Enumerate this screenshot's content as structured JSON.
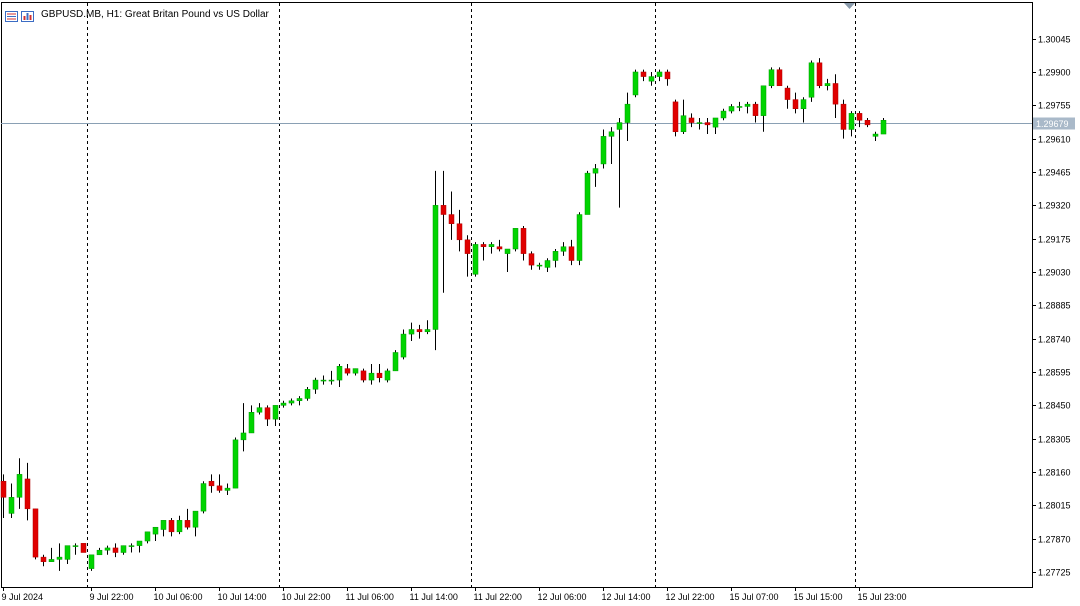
{
  "header": {
    "symbol_label": "GBPUSD.MB, H1:",
    "description": "Great Britan Pound vs US Dollar",
    "icons": [
      "chart-menu-icon",
      "bar-chart-icon"
    ]
  },
  "colors": {
    "bull": "#00d400",
    "bear": "#e00000",
    "wick": "#000000",
    "current_price_line": "#8aa0b4",
    "current_price_label_bg": "#a9b9c9",
    "separator": "#000000",
    "frame": "#000000"
  },
  "chart_data": {
    "type": "candlestick",
    "timeframe": "H1",
    "ylim": [
      1.2766,
      1.302
    ],
    "y_ticks": [
      "1.30045",
      "1.29900",
      "1.29755",
      "1.29610",
      "1.29465",
      "1.29320",
      "1.29175",
      "1.29030",
      "1.28885",
      "1.28740",
      "1.28595",
      "1.28450",
      "1.28305",
      "1.28160",
      "1.28015",
      "1.27870",
      "1.27725"
    ],
    "x_tick_labels": [
      "9 Jul 2024",
      "9 Jul 22:00",
      "10 Jul 06:00",
      "10 Jul 14:00",
      "10 Jul 22:00",
      "11 Jul 06:00",
      "11 Jul 14:00",
      "11 Jul 22:00",
      "12 Jul 06:00",
      "12 Jul 14:00",
      "12 Jul 22:00",
      "15 Jul 07:00",
      "15 Jul 15:00",
      "15 Jul 23:00"
    ],
    "x_tick_index": [
      0,
      11,
      19,
      27,
      35,
      43,
      51,
      59,
      67,
      75,
      83,
      91,
      99,
      107
    ],
    "day_separators_index": [
      10.5,
      34.5,
      58.5,
      81.5,
      106.5
    ],
    "current_price": "1.29679",
    "ohlc": [
      [
        1.2812,
        1.2815,
        1.2796,
        1.2805
      ],
      [
        1.2798,
        1.2811,
        1.2796,
        1.2805
      ],
      [
        1.2805,
        1.2822,
        1.28,
        1.2815
      ],
      [
        1.2813,
        1.282,
        1.2795,
        1.28
      ],
      [
        1.28,
        1.28,
        1.2778,
        1.2779
      ],
      [
        1.2779,
        1.278,
        1.2775,
        1.2777
      ],
      [
        1.2777,
        1.2783,
        1.2777,
        1.2778
      ],
      [
        1.2778,
        1.2785,
        1.2773,
        1.2779
      ],
      [
        1.2778,
        1.2783,
        1.2776,
        1.2784
      ],
      [
        1.2784,
        1.2785,
        1.278,
        1.2784
      ],
      [
        1.2785,
        1.2785,
        1.2781,
        1.2781
      ],
      [
        1.2774,
        1.2779,
        1.2773,
        1.278
      ],
      [
        1.278,
        1.2783,
        1.278,
        1.2782
      ],
      [
        1.2782,
        1.2784,
        1.278,
        1.2783
      ],
      [
        1.2783,
        1.2785,
        1.2779,
        1.2781
      ],
      [
        1.2781,
        1.2784,
        1.278,
        1.2784
      ],
      [
        1.2784,
        1.2785,
        1.2781,
        1.2784
      ],
      [
        1.2784,
        1.2786,
        1.2781,
        1.2786
      ],
      [
        1.2786,
        1.279,
        1.2785,
        1.279
      ],
      [
        1.2789,
        1.2792,
        1.2786,
        1.2792
      ],
      [
        1.2791,
        1.2795,
        1.2788,
        1.2795
      ],
      [
        1.2795,
        1.2796,
        1.2788,
        1.279
      ],
      [
        1.279,
        1.2797,
        1.2789,
        1.2795
      ],
      [
        1.2795,
        1.28,
        1.2791,
        1.2792
      ],
      [
        1.2792,
        1.2799,
        1.2788,
        1.2799
      ],
      [
        1.2799,
        1.2812,
        1.2798,
        1.2811
      ],
      [
        1.2812,
        1.2815,
        1.2807,
        1.281
      ],
      [
        1.281,
        1.2815,
        1.2807,
        1.2808
      ],
      [
        1.2808,
        1.2811,
        1.2806,
        1.2809
      ],
      [
        1.2809,
        1.2831,
        1.2809,
        1.283
      ],
      [
        1.283,
        1.2846,
        1.2825,
        1.2833
      ],
      [
        1.2833,
        1.2845,
        1.2833,
        1.2842
      ],
      [
        1.2842,
        1.2846,
        1.2841,
        1.2844
      ],
      [
        1.2844,
        1.2845,
        1.2836,
        1.2839
      ],
      [
        1.2839,
        1.2845,
        1.2836,
        1.2845
      ],
      [
        1.2845,
        1.2847,
        1.2844,
        1.2846
      ],
      [
        1.2846,
        1.2848,
        1.2845,
        1.2847
      ],
      [
        1.2847,
        1.2849,
        1.2845,
        1.2848
      ],
      [
        1.2848,
        1.2853,
        1.2847,
        1.2852
      ],
      [
        1.2852,
        1.2857,
        1.285,
        1.2856
      ],
      [
        1.2856,
        1.2858,
        1.2854,
        1.2856
      ],
      [
        1.2856,
        1.286,
        1.2854,
        1.2856
      ],
      [
        1.2856,
        1.2863,
        1.2853,
        1.2862
      ],
      [
        1.2861,
        1.2863,
        1.2858,
        1.2859
      ],
      [
        1.2859,
        1.2861,
        1.2858,
        1.2861
      ],
      [
        1.286,
        1.2861,
        1.2855,
        1.2856
      ],
      [
        1.2856,
        1.2863,
        1.2854,
        1.2859
      ],
      [
        1.2859,
        1.2863,
        1.2855,
        1.2857
      ],
      [
        1.2856,
        1.2861,
        1.2855,
        1.286
      ],
      [
        1.286,
        1.2869,
        1.286,
        1.2868
      ],
      [
        1.2866,
        1.2878,
        1.2865,
        1.2876
      ],
      [
        1.2876,
        1.2881,
        1.2873,
        1.2878
      ],
      [
        1.2878,
        1.288,
        1.2874,
        1.2877
      ],
      [
        1.2877,
        1.2882,
        1.2876,
        1.2878
      ],
      [
        1.2878,
        1.2947,
        1.2869,
        1.2932
      ],
      [
        1.2932,
        1.2947,
        1.2894,
        1.2928
      ],
      [
        1.2928,
        1.2938,
        1.2917,
        1.2924
      ],
      [
        1.2924,
        1.293,
        1.2912,
        1.2917
      ],
      [
        1.2917,
        1.2919,
        1.2901,
        1.2911
      ],
      [
        1.2902,
        1.2916,
        1.2901,
        1.2915
      ],
      [
        1.2915,
        1.2916,
        1.2908,
        1.2914
      ],
      [
        1.2914,
        1.2916,
        1.2911,
        1.2915
      ],
      [
        1.2914,
        1.2917,
        1.2912,
        1.2913
      ],
      [
        1.2911,
        1.2913,
        1.2903,
        1.2913
      ],
      [
        1.2913,
        1.2922,
        1.2912,
        1.2922
      ],
      [
        1.2922,
        1.2923,
        1.2908,
        1.2911
      ],
      [
        1.2911,
        1.2912,
        1.2904,
        1.2906
      ],
      [
        1.2906,
        1.2907,
        1.2904,
        1.2906
      ],
      [
        1.2905,
        1.2909,
        1.2903,
        1.2908
      ],
      [
        1.2908,
        1.2913,
        1.2905,
        1.2912
      ],
      [
        1.2912,
        1.2916,
        1.291,
        1.2914
      ],
      [
        1.2914,
        1.2917,
        1.2906,
        1.2908
      ],
      [
        1.2908,
        1.2929,
        1.2906,
        1.2928
      ],
      [
        1.2928,
        1.2947,
        1.2928,
        1.2946
      ],
      [
        1.2946,
        1.295,
        1.294,
        1.2948
      ],
      [
        1.295,
        1.2965,
        1.2948,
        1.2962
      ],
      [
        1.2962,
        1.2966,
        1.295,
        1.2964
      ],
      [
        1.2965,
        1.297,
        1.2931,
        1.2968
      ],
      [
        1.2968,
        1.2981,
        1.296,
        1.2976
      ],
      [
        1.298,
        1.2991,
        1.2979,
        1.299
      ],
      [
        1.299,
        1.2991,
        1.2986,
        1.2988
      ],
      [
        1.2986,
        1.299,
        1.2984,
        1.2988
      ],
      [
        1.2988,
        1.2991,
        1.2986,
        1.299
      ],
      [
        1.299,
        1.2991,
        1.2984,
        1.2987
      ],
      [
        1.2977,
        1.2978,
        1.2962,
        1.2964
      ],
      [
        1.2964,
        1.2978,
        1.2963,
        1.2971
      ],
      [
        1.297,
        1.2972,
        1.2966,
        1.2968
      ],
      [
        1.2968,
        1.297,
        1.2965,
        1.2968
      ],
      [
        1.2968,
        1.297,
        1.2963,
        1.2967
      ],
      [
        1.2966,
        1.297,
        1.2963,
        1.297
      ],
      [
        1.297,
        1.2974,
        1.2969,
        1.2973
      ],
      [
        1.2973,
        1.2976,
        1.2972,
        1.2975
      ],
      [
        1.2975,
        1.2977,
        1.2973,
        1.2975
      ],
      [
        1.2975,
        1.2977,
        1.2972,
        1.2976
      ],
      [
        1.2976,
        1.2977,
        1.2968,
        1.2971
      ],
      [
        1.2971,
        1.2984,
        1.2964,
        1.2984
      ],
      [
        1.2984,
        1.2992,
        1.2983,
        1.2991
      ],
      [
        1.2991,
        1.2992,
        1.2984,
        1.2984
      ],
      [
        1.2983,
        1.2984,
        1.2974,
        1.2978
      ],
      [
        1.2978,
        1.2981,
        1.2972,
        1.2974
      ],
      [
        1.2974,
        1.2979,
        1.2968,
        1.2978
      ],
      [
        1.2979,
        1.2995,
        1.2977,
        1.2994
      ],
      [
        1.2994,
        1.2996,
        1.2983,
        1.2984
      ],
      [
        1.2984,
        1.2987,
        1.2982,
        1.2985
      ],
      [
        1.2985,
        1.2989,
        1.297,
        1.2976
      ],
      [
        1.2976,
        1.2978,
        1.2961,
        1.2965
      ],
      [
        1.2965,
        1.2973,
        1.2962,
        1.2972
      ],
      [
        1.2972,
        1.2973,
        1.2966,
        1.2969
      ],
      [
        1.2969,
        1.297,
        1.2966,
        1.2967
      ],
      [
        1.2962,
        1.2964,
        1.296,
        1.2963
      ],
      [
        1.2963,
        1.297,
        1.2963,
        1.2969
      ]
    ]
  }
}
